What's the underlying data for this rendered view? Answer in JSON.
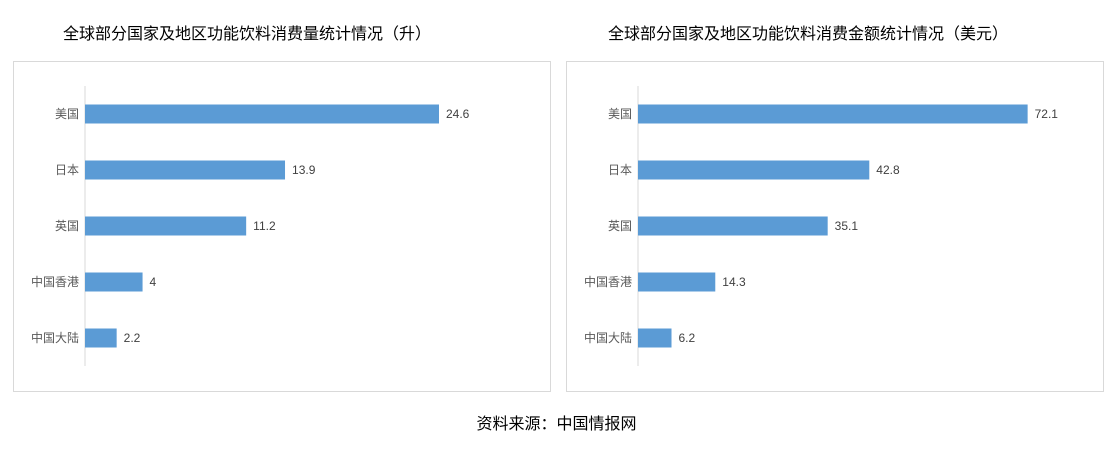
{
  "chart_data": [
    {
      "type": "bar",
      "orientation": "horizontal",
      "title": "全球部分国家及地区功能饮料消费量统计情况（升）",
      "categories": [
        "美国",
        "日本",
        "英国",
        "中国香港",
        "中国大陆"
      ],
      "values": [
        24.6,
        13.9,
        11.2,
        4,
        2.2
      ],
      "data_labels": [
        "24.6",
        "13.9",
        "11.2",
        "4",
        "2.2"
      ],
      "xlim": [
        0,
        30
      ],
      "grid": false,
      "legend": "none",
      "bar_color": "#5b9bd5"
    },
    {
      "type": "bar",
      "orientation": "horizontal",
      "title": "全球部分国家及地区功能饮料消费金额统计情况（美元）",
      "categories": [
        "美国",
        "日本",
        "英国",
        "中国香港",
        "中国大陆"
      ],
      "values": [
        72.1,
        42.8,
        35.1,
        14.3,
        6.2
      ],
      "data_labels": [
        "72.1",
        "42.8",
        "35.1",
        "14.3",
        "6.2"
      ],
      "xlim": [
        0,
        90
      ],
      "grid": false,
      "legend": "none",
      "bar_color": "#5b9bd5"
    }
  ],
  "source_text": "资料来源：中国情报网"
}
